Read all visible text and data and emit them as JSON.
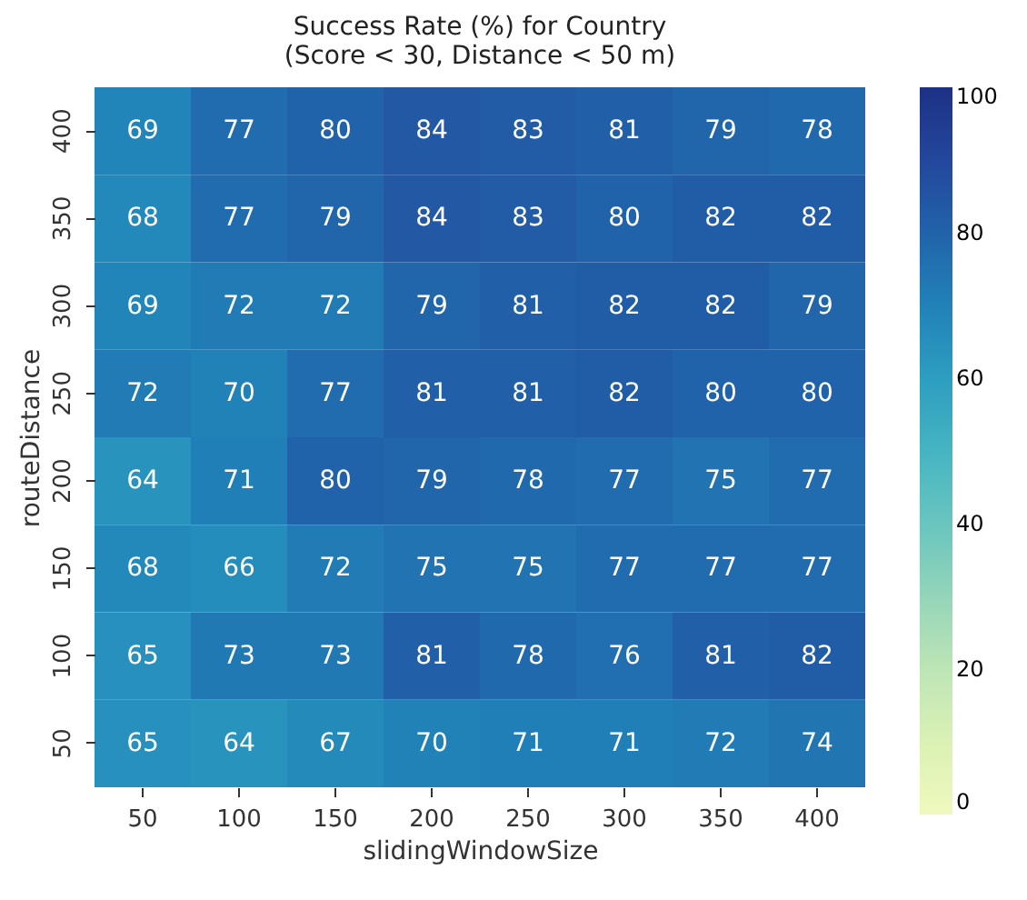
{
  "chart_data": {
    "type": "heatmap",
    "title": "Success Rate (%) for Country",
    "subtitle": "(Score < 30, Distance < 50 m)",
    "xlabel": "slidingWindowSize",
    "ylabel": "routeDistance",
    "categories": [
      "50",
      "100",
      "150",
      "200",
      "250",
      "300",
      "350",
      "400"
    ],
    "y_categories": [
      "400",
      "350",
      "300",
      "250",
      "200",
      "150",
      "100",
      "50"
    ],
    "cells": [
      [
        69,
        77,
        80,
        84,
        83,
        81,
        79,
        78
      ],
      [
        68,
        77,
        79,
        84,
        83,
        80,
        82,
        82
      ],
      [
        69,
        72,
        72,
        79,
        81,
        82,
        82,
        79
      ],
      [
        72,
        70,
        77,
        81,
        81,
        82,
        80,
        80
      ],
      [
        64,
        71,
        80,
        79,
        78,
        77,
        75,
        77
      ],
      [
        68,
        66,
        72,
        75,
        75,
        77,
        77,
        77
      ],
      [
        65,
        73,
        73,
        81,
        78,
        76,
        81,
        82
      ],
      [
        65,
        64,
        67,
        70,
        71,
        71,
        72,
        74
      ]
    ],
    "clim": [
      0,
      100
    ],
    "cticks": [
      0,
      20,
      40,
      60,
      80,
      100
    ],
    "data_labels": true
  }
}
